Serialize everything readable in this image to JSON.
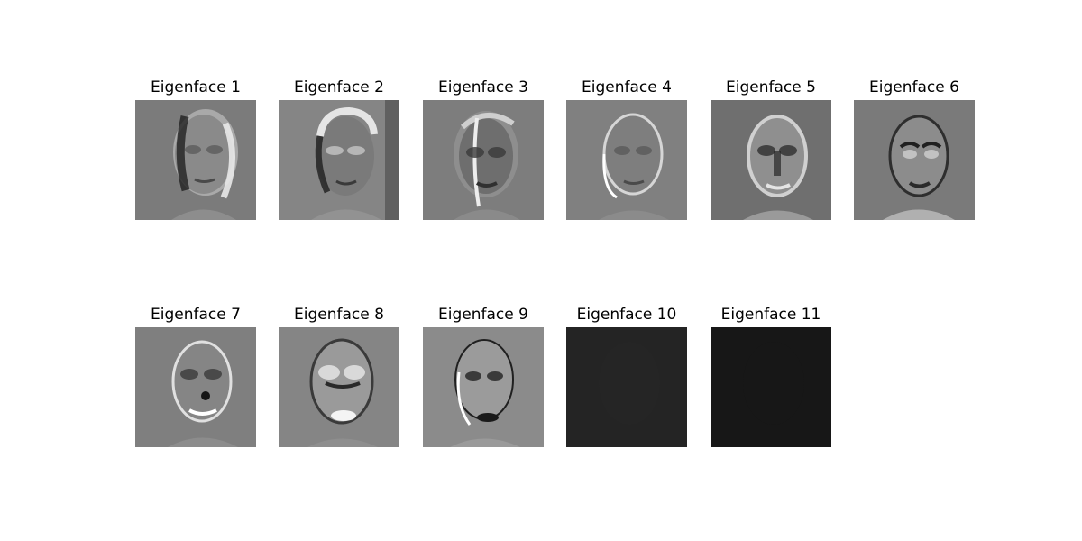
{
  "panels": [
    {
      "title": "Eigenface 1",
      "background": "#7b7b7b",
      "face_color": "#8a8a8a"
    },
    {
      "title": "Eigenface 2",
      "background": "#858585",
      "face_color": "#7a7a7a"
    },
    {
      "title": "Eigenface 3",
      "background": "#7d7d7d",
      "face_color": "#6e6e6e"
    },
    {
      "title": "Eigenface 4",
      "background": "#808080",
      "face_color": "#7e7e7e"
    },
    {
      "title": "Eigenface 5",
      "background": "#6f6f6f",
      "face_color": "#8f8f8f"
    },
    {
      "title": "Eigenface 6",
      "background": "#7a7a7a",
      "face_color": "#8c8c8c"
    },
    {
      "title": "Eigenface 7",
      "background": "#7f7f7f",
      "face_color": "#858585"
    },
    {
      "title": "Eigenface 8",
      "background": "#858585",
      "face_color": "#9a9a9a"
    },
    {
      "title": "Eigenface 9",
      "background": "#8b8b8b",
      "face_color": "#9b9b9b"
    },
    {
      "title": "Eigenface 10",
      "background": "#242424",
      "face_color": "#262626"
    },
    {
      "title": "Eigenface 11",
      "background": "#171717",
      "face_color": "#181818"
    }
  ]
}
